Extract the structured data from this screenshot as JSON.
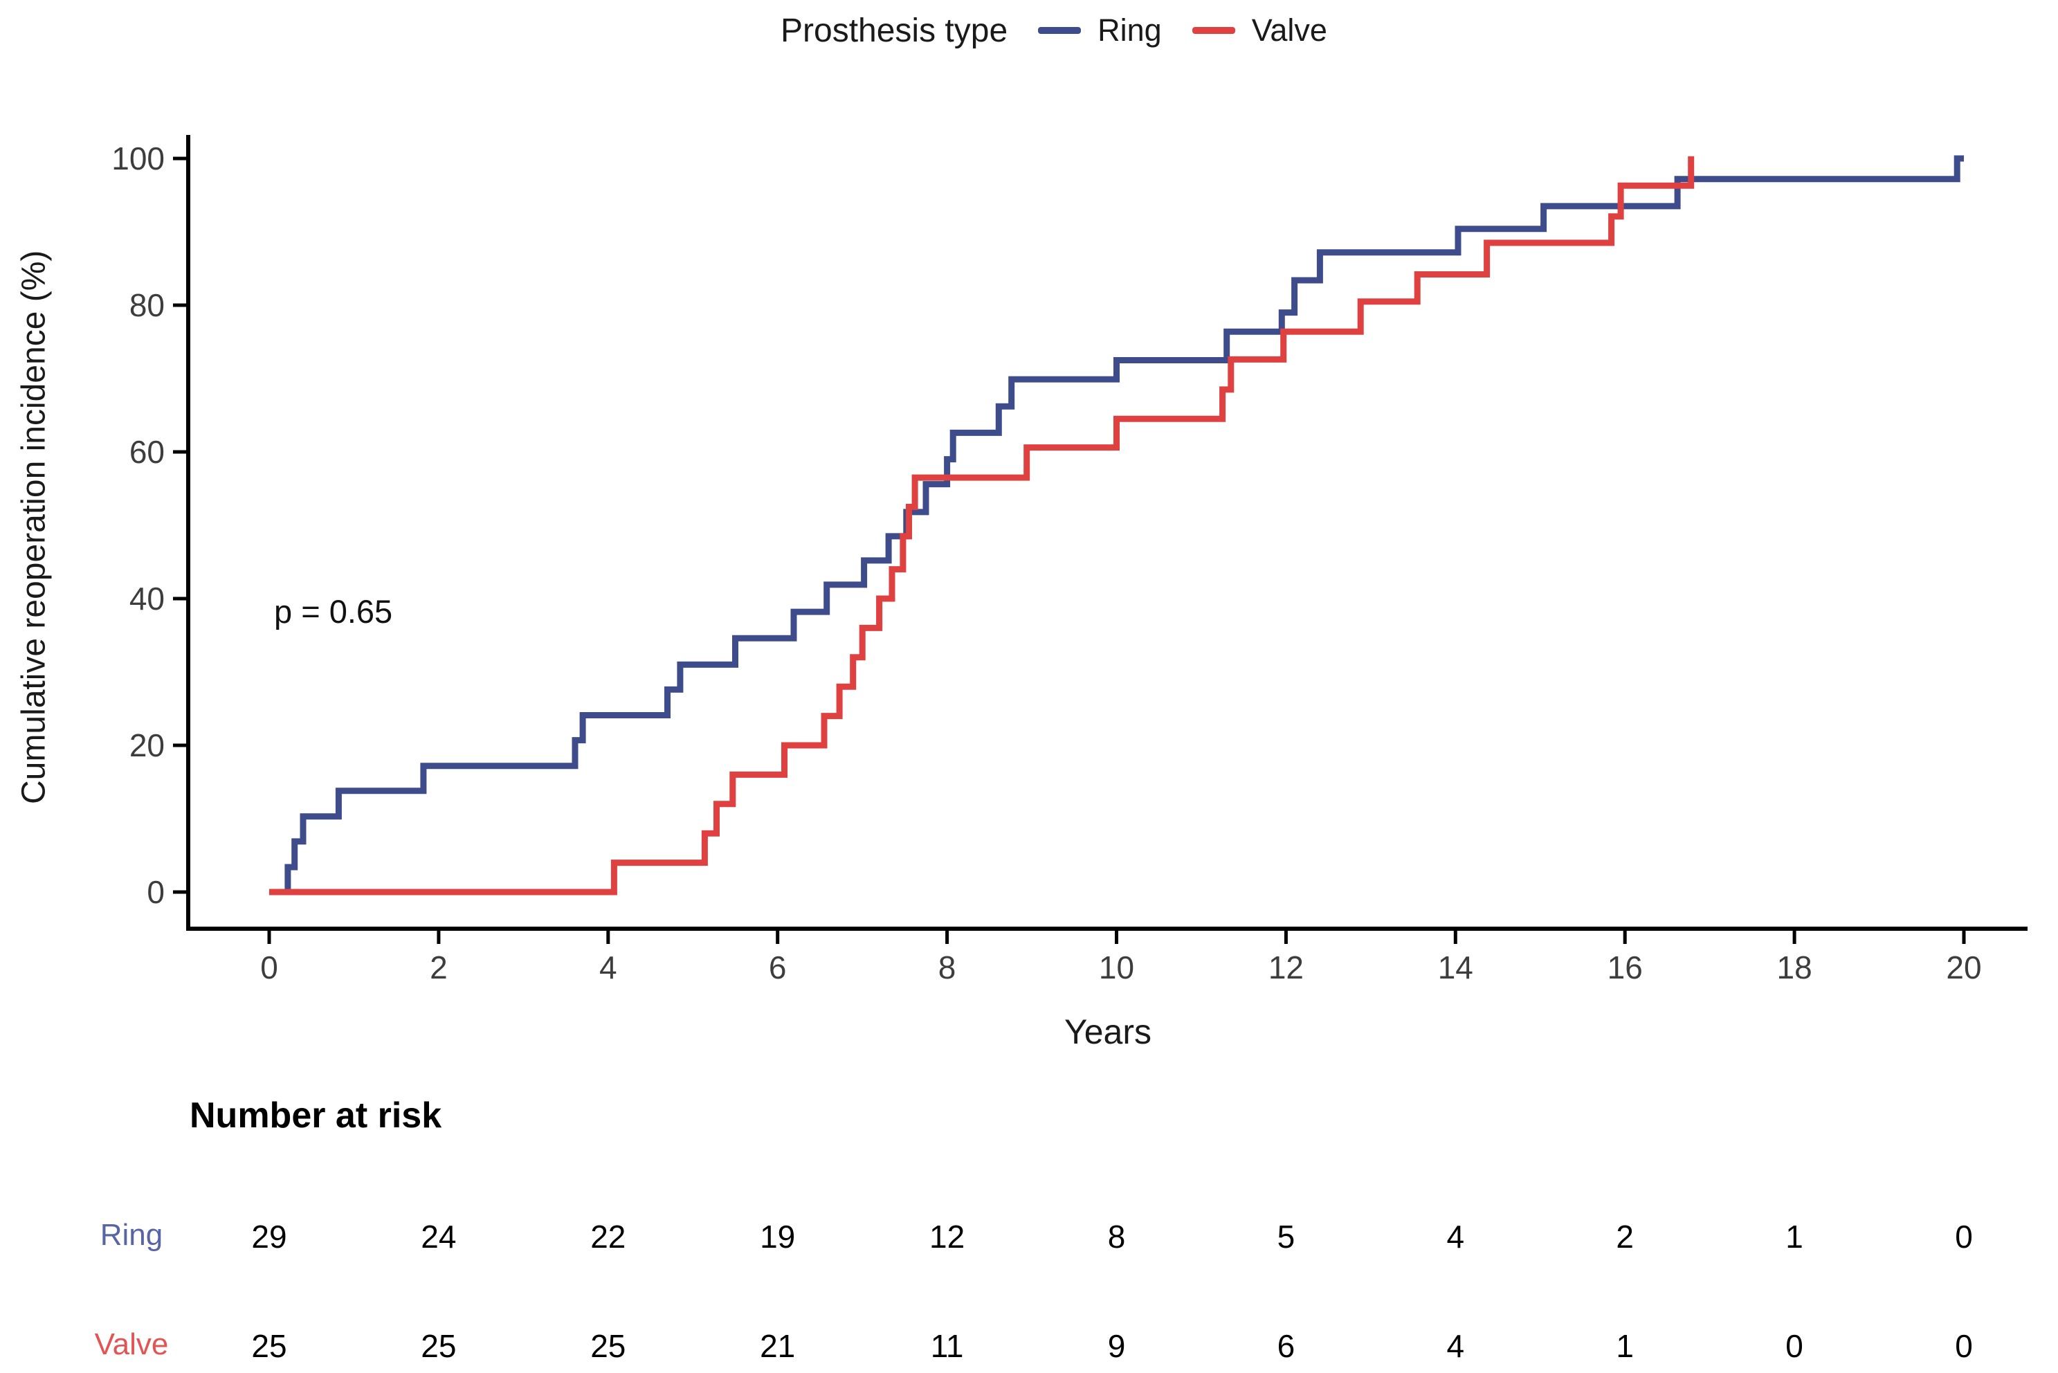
{
  "figure": {
    "legend": {
      "title": "Prosthesis type",
      "items": [
        {
          "label": "Ring",
          "color": "#3F4C8C"
        },
        {
          "label": "Valve",
          "color": "#DF4040"
        }
      ]
    },
    "annotation": {
      "text": "p = 0.65"
    },
    "x_axis": {
      "label": "Years",
      "ticks": [
        0,
        2,
        4,
        6,
        8,
        10,
        12,
        14,
        16,
        18,
        20
      ]
    },
    "y_axis": {
      "label": "Cumulative reoperation incidence (%)",
      "ticks": [
        0,
        20,
        40,
        60,
        80,
        100
      ]
    }
  },
  "chart_data": {
    "type": "line",
    "variant": "step-cumulative-incidence",
    "title": "",
    "xlabel": "Years",
    "ylabel": "Cumulative reoperation incidence (%)",
    "xlim": [
      0,
      20
    ],
    "ylim": [
      0,
      100
    ],
    "x_ticks": [
      0,
      2,
      4,
      6,
      8,
      10,
      12,
      14,
      16,
      18,
      20
    ],
    "y_ticks": [
      0,
      20,
      40,
      60,
      80,
      100
    ],
    "grid": false,
    "legend_position": "top",
    "annotation": {
      "text": "p = 0.65",
      "x": 0.15,
      "y": 37
    },
    "series": [
      {
        "name": "Ring",
        "color": "#3F4C8C",
        "end_x": 20.0,
        "steps": [
          [
            0,
            0
          ],
          [
            0.22,
            3.4
          ],
          [
            0.3,
            6.9
          ],
          [
            0.4,
            10.3
          ],
          [
            0.82,
            13.8
          ],
          [
            1.82,
            17.2
          ],
          [
            3.61,
            20.7
          ],
          [
            3.7,
            24.1
          ],
          [
            4.7,
            27.6
          ],
          [
            4.85,
            31.0
          ],
          [
            5.5,
            34.6
          ],
          [
            6.19,
            38.2
          ],
          [
            6.58,
            41.9
          ],
          [
            7.02,
            45.2
          ],
          [
            7.31,
            48.5
          ],
          [
            7.52,
            51.8
          ],
          [
            7.75,
            55.6
          ],
          [
            8.0,
            59.0
          ],
          [
            8.07,
            62.6
          ],
          [
            8.61,
            66.2
          ],
          [
            8.76,
            69.9
          ],
          [
            10.0,
            72.5
          ],
          [
            11.3,
            76.4
          ],
          [
            11.95,
            79.0
          ],
          [
            12.1,
            83.4
          ],
          [
            12.4,
            87.2
          ],
          [
            14.03,
            90.4
          ],
          [
            15.04,
            93.5
          ],
          [
            16.62,
            97.2
          ],
          [
            19.92,
            100.0
          ]
        ]
      },
      {
        "name": "Valve",
        "color": "#DF4040",
        "end_x": 16.78,
        "steps": [
          [
            0,
            0
          ],
          [
            4.07,
            4.0
          ],
          [
            5.14,
            8.0
          ],
          [
            5.28,
            12.0
          ],
          [
            5.47,
            16.0
          ],
          [
            6.08,
            20.0
          ],
          [
            6.55,
            24.0
          ],
          [
            6.73,
            28.0
          ],
          [
            6.89,
            32.0
          ],
          [
            7.0,
            36.0
          ],
          [
            7.2,
            40.0
          ],
          [
            7.35,
            44.0
          ],
          [
            7.48,
            48.5
          ],
          [
            7.55,
            52.5
          ],
          [
            7.62,
            56.5
          ],
          [
            8.94,
            60.6
          ],
          [
            10.0,
            64.5
          ],
          [
            11.25,
            68.5
          ],
          [
            11.35,
            72.6
          ],
          [
            11.97,
            76.4
          ],
          [
            12.88,
            80.5
          ],
          [
            13.55,
            84.2
          ],
          [
            14.37,
            88.5
          ],
          [
            15.84,
            92.1
          ],
          [
            15.95,
            96.3
          ],
          [
            16.78,
            100.3
          ]
        ]
      }
    ]
  },
  "risk_table": {
    "title": "Number at risk",
    "time_points": [
      0,
      2,
      4,
      6,
      8,
      10,
      12,
      14,
      16,
      18,
      20
    ],
    "rows": [
      {
        "label": "Ring",
        "color": "#5765A5",
        "values": [
          29,
          24,
          22,
          19,
          12,
          8,
          5,
          4,
          2,
          1,
          0
        ]
      },
      {
        "label": "Valve",
        "color": "#E25555",
        "values": [
          25,
          25,
          25,
          21,
          11,
          9,
          6,
          4,
          1,
          0,
          0
        ]
      }
    ]
  }
}
